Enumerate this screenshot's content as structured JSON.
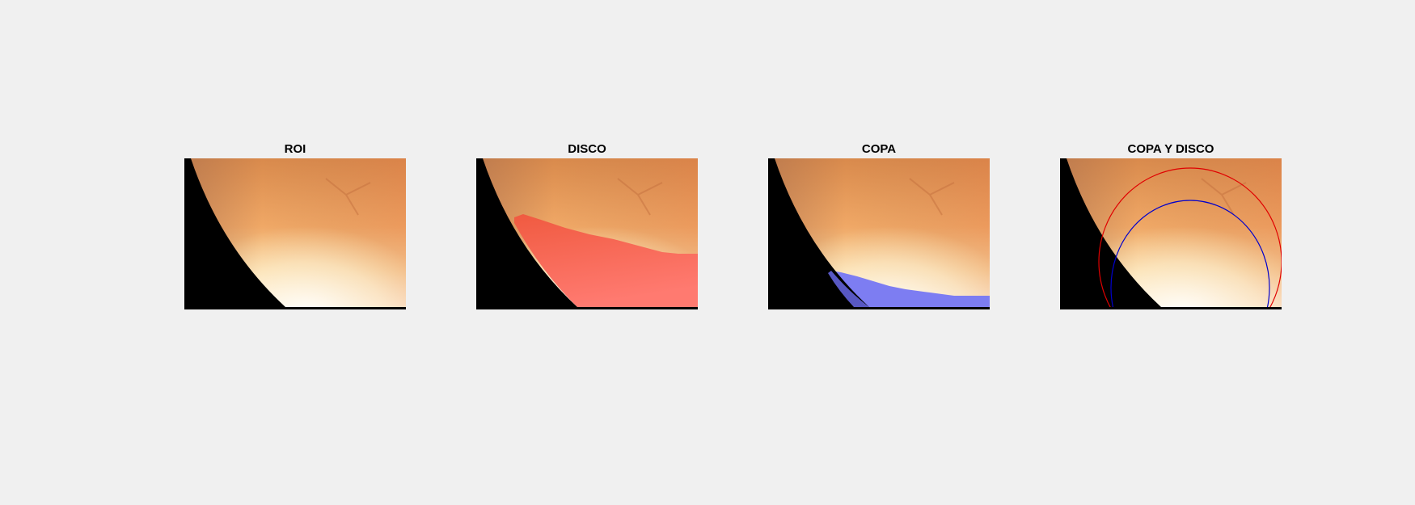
{
  "panels": [
    {
      "title": "ROI",
      "overlay": "none"
    },
    {
      "title": "DISCO",
      "overlay": "disc-mask",
      "overlay_color": "#ff6a5c"
    },
    {
      "title": "COPA",
      "overlay": "cup-mask",
      "overlay_color": "#7d7df2"
    },
    {
      "title": "COPA Y DISCO",
      "overlay": "contours",
      "disc_contour_color": "#e00000",
      "cup_contour_color": "#0000cc"
    }
  ],
  "colors": {
    "background": "#f0f0f0",
    "fundus_orange": "#e8894a",
    "fundus_bright": "#fff8e6",
    "mask_black": "#000000"
  }
}
